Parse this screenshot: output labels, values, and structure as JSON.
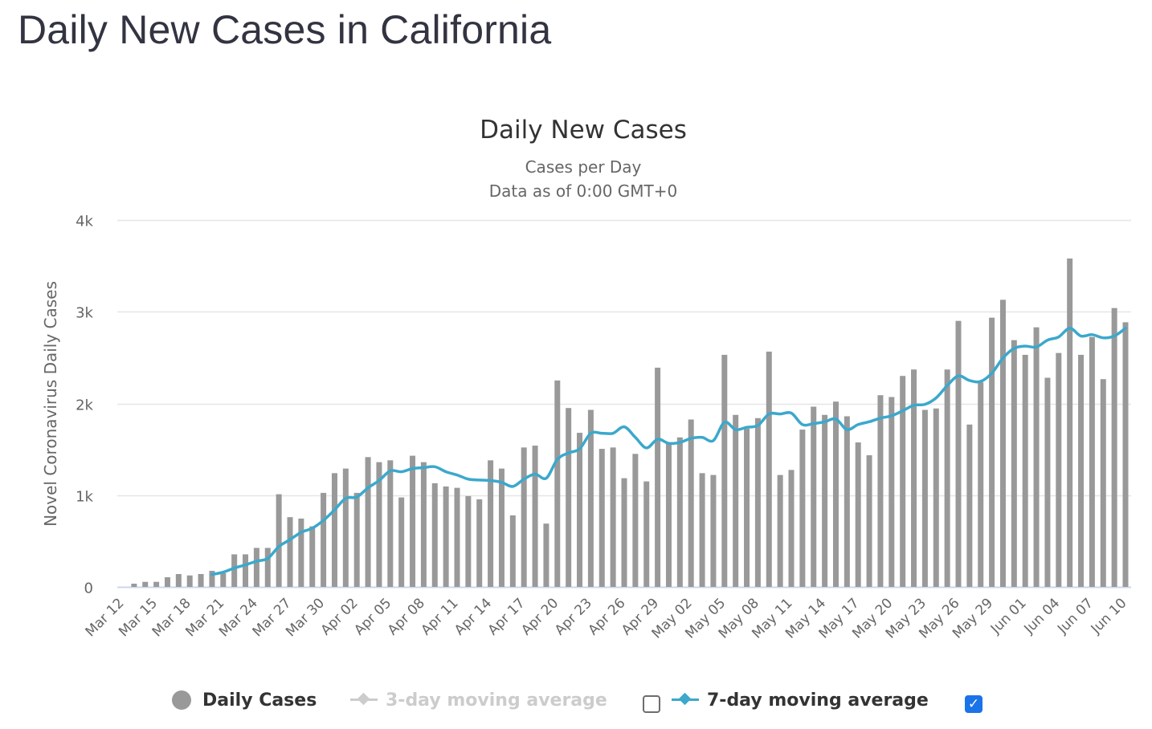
{
  "page": {
    "title": "Daily New Cases in California"
  },
  "chart_data": {
    "type": "bar",
    "title": "Daily New Cases",
    "subtitle_lines": [
      "Cases per Day",
      "Data as of 0:00 GMT+0"
    ],
    "xlabel": "",
    "ylabel": "Novel Coronavirus Daily Cases",
    "ylim": [
      0,
      4000
    ],
    "yticks": [
      0,
      1000,
      2000,
      3000,
      4000
    ],
    "ytick_labels": [
      "0",
      "1k",
      "2k",
      "3k",
      "4k"
    ],
    "grid": true,
    "legend_position": "bottom",
    "categories": [
      "Mar 12",
      "Mar 13",
      "Mar 14",
      "Mar 15",
      "Mar 16",
      "Mar 17",
      "Mar 18",
      "Mar 19",
      "Mar 20",
      "Mar 21",
      "Mar 22",
      "Mar 23",
      "Mar 24",
      "Mar 25",
      "Mar 26",
      "Mar 27",
      "Mar 28",
      "Mar 29",
      "Mar 30",
      "Mar 31",
      "Apr 01",
      "Apr 02",
      "Apr 03",
      "Apr 04",
      "Apr 05",
      "Apr 06",
      "Apr 07",
      "Apr 08",
      "Apr 09",
      "Apr 10",
      "Apr 11",
      "Apr 12",
      "Apr 13",
      "Apr 14",
      "Apr 15",
      "Apr 16",
      "Apr 17",
      "Apr 18",
      "Apr 19",
      "Apr 20",
      "Apr 21",
      "Apr 22",
      "Apr 23",
      "Apr 24",
      "Apr 25",
      "Apr 26",
      "Apr 27",
      "Apr 28",
      "Apr 29",
      "Apr 30",
      "May 01",
      "May 02",
      "May 03",
      "May 04",
      "May 05",
      "May 06",
      "May 07",
      "May 08",
      "May 09",
      "May 10",
      "May 11",
      "May 12",
      "May 13",
      "May 14",
      "May 15",
      "May 16",
      "May 17",
      "May 18",
      "May 19",
      "May 20",
      "May 21",
      "May 22",
      "May 23",
      "May 24",
      "May 25",
      "May 26",
      "May 27",
      "May 28",
      "May 29",
      "May 30",
      "May 31",
      "Jun 01",
      "Jun 02",
      "Jun 03",
      "Jun 04",
      "Jun 05",
      "Jun 06",
      "Jun 07",
      "Jun 08",
      "Jun 09",
      "Jun 10"
    ],
    "x_tick_labels": [
      "Mar 12",
      "Mar 15",
      "Mar 18",
      "Mar 21",
      "Mar 24",
      "Mar 27",
      "Mar 30",
      "Apr 02",
      "Apr 05",
      "Apr 08",
      "Apr 11",
      "Apr 14",
      "Apr 17",
      "Apr 20",
      "Apr 23",
      "Apr 26",
      "Apr 29",
      "May 02",
      "May 05",
      "May 08",
      "May 11",
      "May 14",
      "May 17",
      "May 20",
      "May 23",
      "May 26",
      "May 29",
      "Jun 01",
      "Jun 04",
      "Jun 07",
      "Jun 10"
    ],
    "x_tick_every": 3,
    "series": [
      {
        "name": "Daily Cases",
        "type": "bar",
        "color": "#999999",
        "visible": true,
        "values": [
          0,
          35,
          55,
          55,
          105,
          140,
          125,
          140,
          175,
          150,
          355,
          355,
          425,
          425,
          1010,
          760,
          745,
          660,
          1025,
          1240,
          1290,
          1025,
          1415,
          1360,
          1380,
          975,
          1430,
          1360,
          1130,
          1095,
          1080,
          990,
          955,
          1380,
          1290,
          780,
          1520,
          1540,
          690,
          2250,
          1950,
          1680,
          1930,
          1505,
          1520,
          1185,
          1450,
          1150,
          2390,
          1565,
          1630,
          1825,
          1240,
          1220,
          2530,
          1875,
          1725,
          1840,
          2565,
          1220,
          1275,
          1715,
          1965,
          1875,
          2020,
          1860,
          1575,
          1435,
          2090,
          2070,
          2300,
          2370,
          1930,
          1945,
          2370,
          2900,
          1770,
          2230,
          2935,
          3130,
          2690,
          2530,
          2830,
          2280,
          2550,
          3580,
          2530,
          2725,
          2265,
          3040,
          2885
        ]
      },
      {
        "name": "3-day moving average",
        "type": "line",
        "color": "#cccccc",
        "visible": false,
        "values": []
      },
      {
        "name": "7-day moving average",
        "type": "line",
        "color": "#3ba8cc",
        "visible": true,
        "values": [
          null,
          null,
          null,
          null,
          null,
          null,
          null,
          null,
          135,
          160,
          205,
          240,
          280,
          310,
          440,
          515,
          595,
          640,
          725,
          840,
          965,
          980,
          1080,
          1160,
          1265,
          1255,
          1290,
          1300,
          1310,
          1255,
          1220,
          1175,
          1165,
          1160,
          1140,
          1095,
          1175,
          1230,
          1185,
          1390,
          1460,
          1505,
          1675,
          1675,
          1675,
          1745,
          1630,
          1515,
          1610,
          1565,
          1575,
          1620,
          1630,
          1595,
          1795,
          1715,
          1740,
          1760,
          1885,
          1885,
          1895,
          1770,
          1780,
          1800,
          1830,
          1715,
          1770,
          1800,
          1840,
          1865,
          1920,
          1980,
          1990,
          2060,
          2195,
          2300,
          2250,
          2240,
          2330,
          2495,
          2600,
          2625,
          2615,
          2690,
          2725,
          2820,
          2735,
          2750,
          2715,
          2735,
          2820
        ]
      }
    ]
  },
  "legend": {
    "items": [
      {
        "label": "Daily Cases",
        "state": "on"
      },
      {
        "label": "3-day moving average",
        "state": "off",
        "checkbox_checked": false
      },
      {
        "label": "7-day moving average",
        "state": "on",
        "checkbox_checked": true
      }
    ],
    "checkmark_glyph": "✓"
  }
}
